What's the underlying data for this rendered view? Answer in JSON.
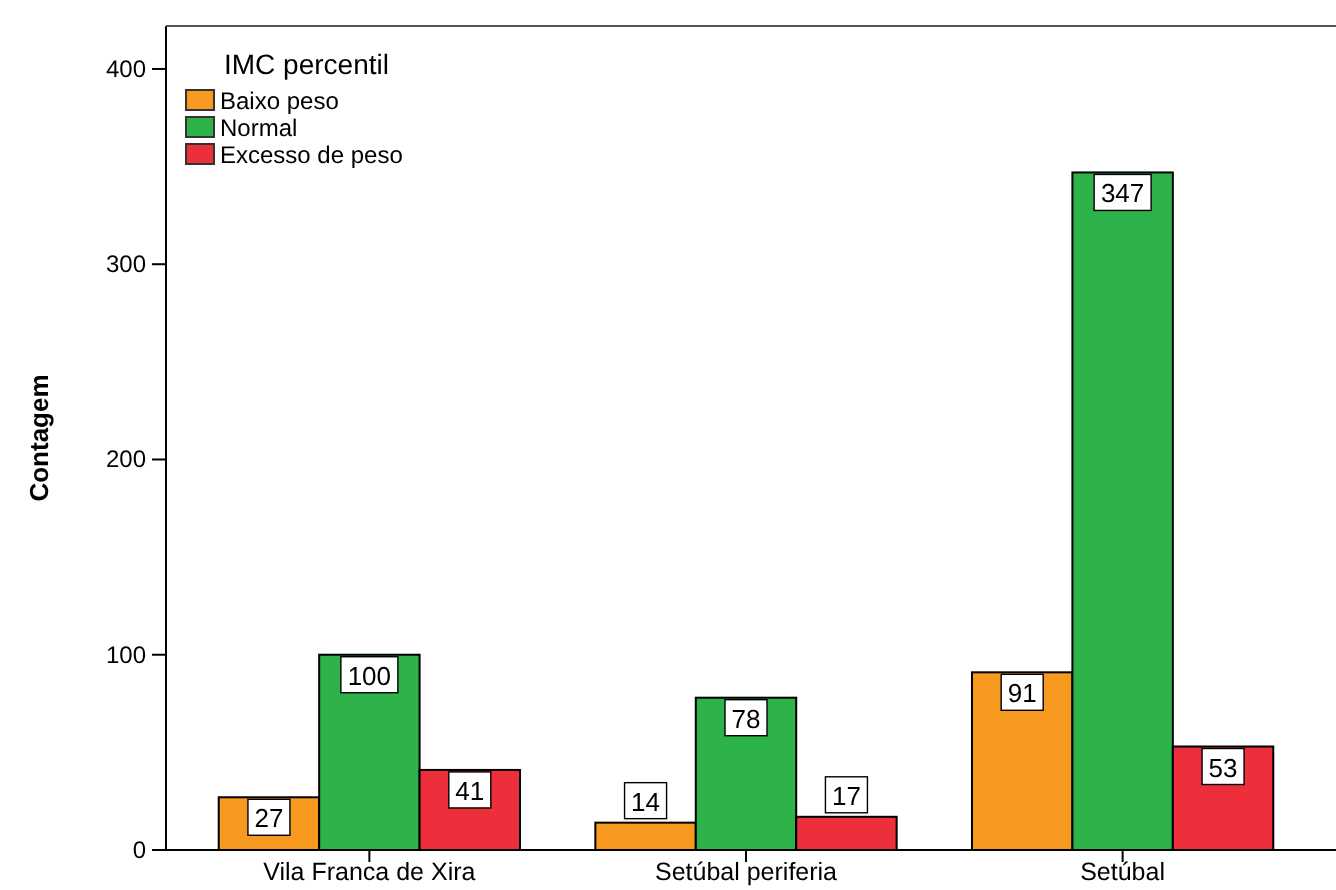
{
  "chart_data": {
    "type": "bar",
    "ylabel": "Contagem",
    "legend_title": "IMC percentil",
    "categories": [
      "Vila Franca de Xira",
      "Setúbal periferia",
      "Setúbal"
    ],
    "series": [
      {
        "name": "Baixo peso",
        "color": "#f7991f",
        "values": [
          27,
          14,
          91
        ]
      },
      {
        "name": "Normal",
        "color": "#2db34a",
        "values": [
          100,
          78,
          347
        ]
      },
      {
        "name": "Excesso de peso",
        "color": "#ec2f3a",
        "values": [
          41,
          17,
          53
        ]
      }
    ],
    "ylim": [
      0,
      422
    ],
    "yticks": [
      0,
      100,
      200,
      300,
      400
    ],
    "data_labels": true,
    "legend": "top left",
    "grid": false
  }
}
